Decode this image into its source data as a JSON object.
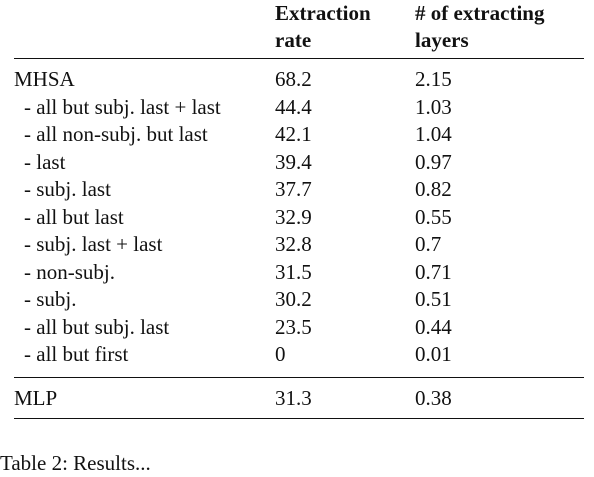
{
  "table": {
    "headers": {
      "col1": "",
      "col2_line1": "Extraction",
      "col2_line2": "rate",
      "col3_line1": "# of extracting",
      "col3_line2": "layers"
    },
    "rows": [
      {
        "label": "MHSA",
        "rate": "68.2",
        "layers": "2.15"
      },
      {
        "label": "- all but subj. last + last",
        "rate": "44.4",
        "layers": "1.03"
      },
      {
        "label": "- all non-subj. but last",
        "rate": "42.1",
        "layers": "1.04"
      },
      {
        "label": "- last",
        "rate": "39.4",
        "layers": "0.97"
      },
      {
        "label": "- subj. last",
        "rate": "37.7",
        "layers": "0.82"
      },
      {
        "label": "- all but last",
        "rate": "32.9",
        "layers": "0.55"
      },
      {
        "label": "- subj. last + last",
        "rate": "32.8",
        "layers": "0.7"
      },
      {
        "label": "- non-subj.",
        "rate": "31.5",
        "layers": "0.71"
      },
      {
        "label": "- subj.",
        "rate": "30.2",
        "layers": "0.51"
      },
      {
        "label": "- all but subj. last",
        "rate": "23.5",
        "layers": "0.44"
      },
      {
        "label": "- all but first",
        "rate": "0",
        "layers": "0.01"
      }
    ],
    "mlp_row": {
      "label": "MLP",
      "rate": "31.3",
      "layers": "0.38"
    }
  },
  "caption": "Table 2: Results..."
}
